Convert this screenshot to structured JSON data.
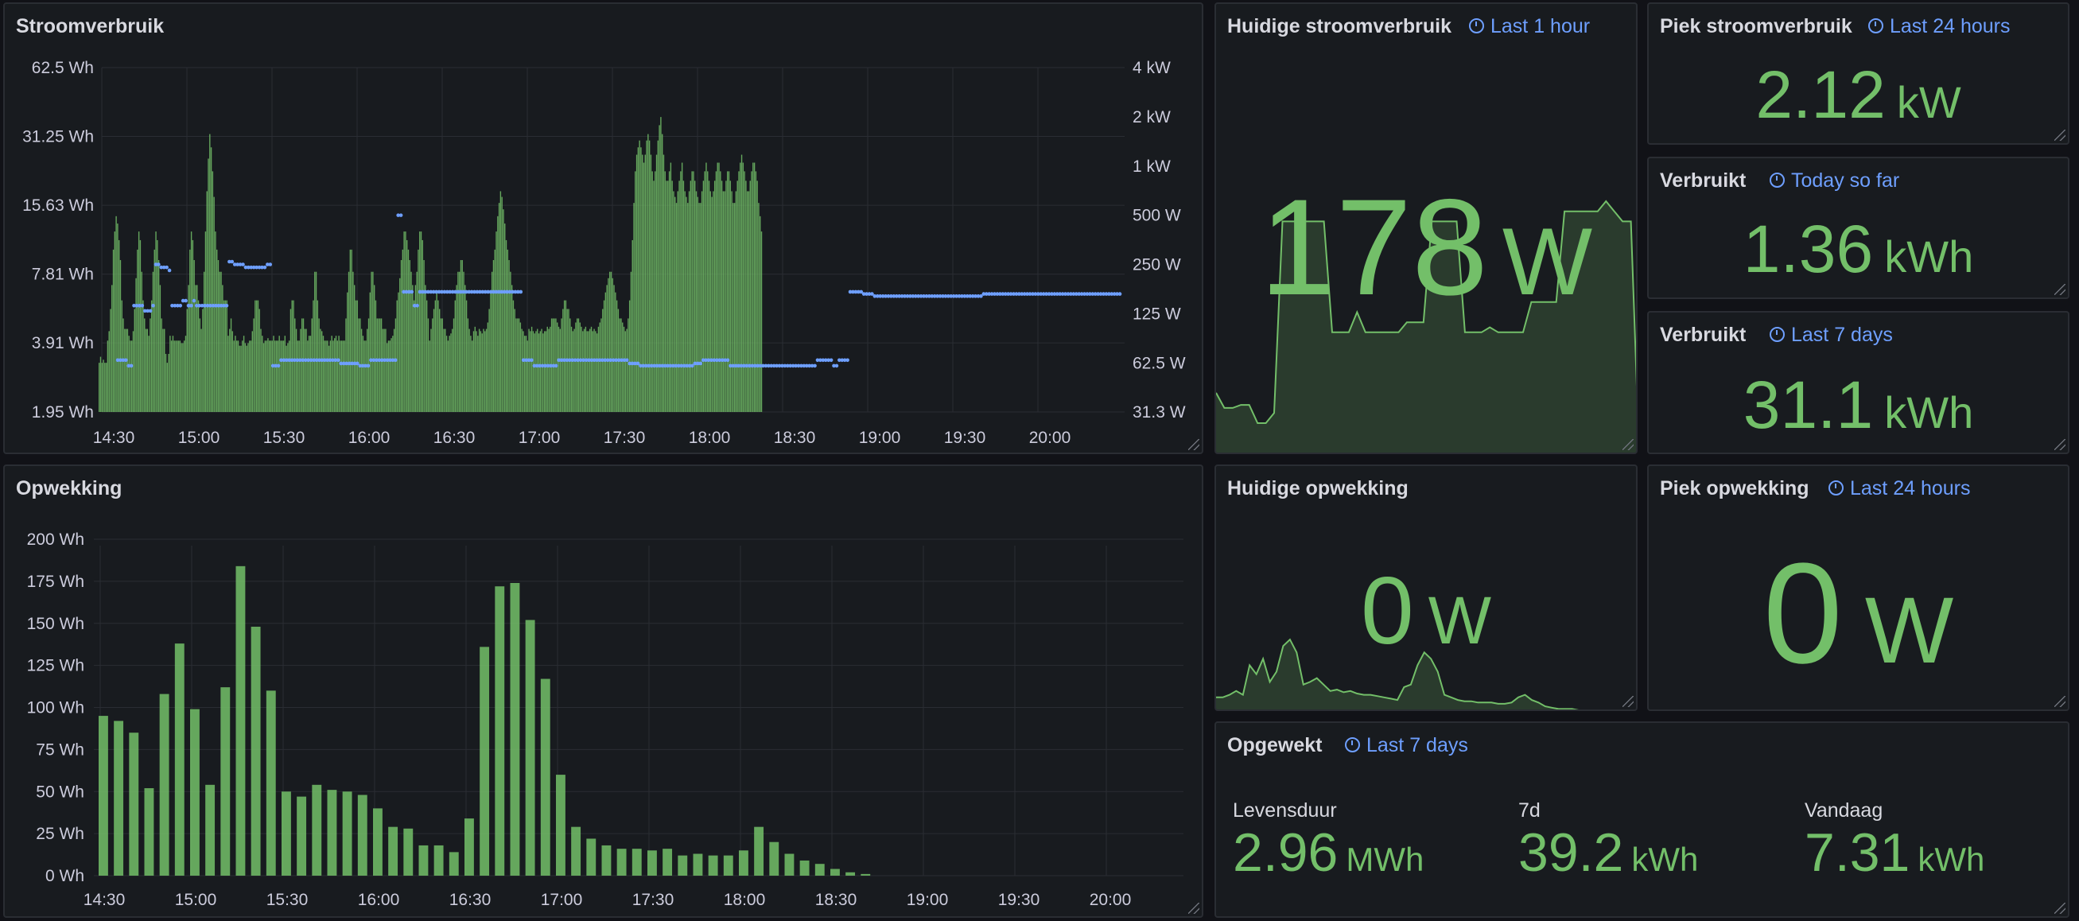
{
  "panels": {
    "stroomverbruik": {
      "title": "Stroomverbruik"
    },
    "opwekking": {
      "title": "Opwekking"
    },
    "huidige_stroomverbruik": {
      "title": "Huidige stroomverbruik",
      "time_range": "Last 1 hour",
      "value": "178",
      "unit": "W"
    },
    "piek_stroomverbruik": {
      "title": "Piek stroomverbruik",
      "time_range": "Last 24 hours",
      "value": "2.12",
      "unit": "kW"
    },
    "verbruikt_today": {
      "title": "Verbruikt",
      "time_range": "Today so far",
      "value": "1.36",
      "unit": "kWh"
    },
    "verbruikt_7d": {
      "title": "Verbruikt",
      "time_range": "Last 7 days",
      "value": "31.1",
      "unit": "kWh"
    },
    "huidige_opwekking": {
      "title": "Huidige opwekking",
      "value": "0",
      "unit": "W"
    },
    "piek_opwekking": {
      "title": "Piek opwekking",
      "time_range": "Last 24 hours",
      "value": "0",
      "unit": "W"
    },
    "opgewekt": {
      "title": "Opgewekt",
      "time_range": "Last 7 days",
      "items": [
        {
          "label": "Levensduur",
          "value": "2.96",
          "unit": "MWh"
        },
        {
          "label": "7d",
          "value": "39.2",
          "unit": "kWh"
        },
        {
          "label": "Vandaag",
          "value": "7.31",
          "unit": "kWh"
        }
      ]
    }
  },
  "colors": {
    "green": "#73bf69",
    "blue": "#6e9fff",
    "panel_bg": "#181b1f",
    "page_bg": "#111217"
  },
  "chart_data": [
    {
      "type": "bar",
      "title": "Stroomverbruik",
      "x_ticks": [
        "14:30",
        "15:00",
        "15:30",
        "16:00",
        "16:30",
        "17:00",
        "17:30",
        "18:00",
        "18:30",
        "19:00",
        "19:30",
        "20:00"
      ],
      "y_left_ticks": [
        "62.5 Wh",
        "31.25 Wh",
        "15.63 Wh",
        "7.81 Wh",
        "3.91 Wh",
        "1.95 Wh"
      ],
      "y_right_ticks": [
        "4 kW",
        "2 kW",
        "1 kW",
        "500 W",
        "250 W",
        "125 W",
        "62.5 W",
        "31.3 W"
      ],
      "scale": "log2",
      "series": [
        {
          "axis": "left",
          "style": "bars",
          "color": "#73bf69",
          "x_start": "14:30",
          "x_step_min": 0.5,
          "values": [
            3.2,
            3.4,
            3.2,
            3.3,
            3.2,
            3.2,
            4,
            4.4,
            5.5,
            7,
            10,
            12,
            14,
            13,
            11,
            9,
            6,
            5,
            4.5,
            4.5,
            4.5,
            4.2,
            4,
            4,
            4.4,
            5.5,
            7.5,
            10,
            12,
            11,
            8,
            6,
            5,
            4.5,
            4.5,
            4.2,
            5,
            6,
            8,
            10,
            12,
            11,
            9,
            7,
            5,
            4.5,
            4.5,
            3.5,
            3.2,
            3.5,
            4.2,
            4,
            4.2,
            4,
            4,
            4,
            4,
            4,
            3.9,
            3.9,
            4,
            4.2,
            5.5,
            7,
            10,
            12,
            11,
            9,
            7,
            7,
            6,
            5,
            4.5,
            5.5,
            8,
            12,
            18,
            25,
            32,
            28,
            22,
            17,
            12,
            10,
            9,
            8,
            8,
            7,
            6,
            6,
            6,
            4.2,
            4.5,
            5,
            4.4,
            4,
            4.2,
            4,
            4,
            3.8,
            3.8,
            4,
            4.2,
            3.9,
            3.8,
            3.9,
            4,
            4,
            4.4,
            5,
            6,
            6,
            6,
            5.5,
            4.5,
            4.2,
            3.9,
            4,
            4,
            4.1,
            4,
            4,
            4,
            4.2,
            4,
            4,
            4,
            4.2,
            4,
            4,
            4,
            4.2,
            3.8,
            3.9,
            4,
            5.5,
            6,
            6,
            5,
            4.5,
            4,
            4,
            4.5,
            5,
            5,
            4.5,
            4.5,
            4,
            4.2,
            4.2,
            5,
            6,
            8,
            8,
            6,
            5,
            4.5,
            4.4,
            4.2,
            4,
            4,
            4,
            3.8,
            4,
            4.2,
            4,
            4.1,
            4.2,
            4,
            4.2,
            4,
            4,
            4,
            4,
            5,
            6.5,
            8,
            10,
            10,
            8,
            7,
            6,
            6,
            5,
            5,
            4.5,
            4.2,
            4,
            4,
            4.5,
            5,
            6.5,
            8,
            8,
            7,
            6,
            5,
            5,
            5,
            5,
            4.5,
            4.5,
            4.5,
            3.9,
            4,
            4,
            4.1,
            4.2,
            4.5,
            5,
            6,
            6.5,
            7.5,
            9,
            10,
            12,
            12,
            11,
            10,
            9,
            8,
            7,
            6,
            7,
            8,
            10,
            12,
            12,
            11,
            9,
            7,
            6,
            5,
            4,
            4.5,
            5,
            5.5,
            6,
            6.5,
            6,
            5.5,
            5,
            5,
            4.5,
            4.5,
            4.2,
            4,
            4.2,
            4.3,
            4.5,
            5,
            6,
            7,
            8,
            8,
            9,
            9,
            8,
            7,
            6,
            5,
            4.5,
            4.2,
            4,
            4.4,
            4.6,
            4.4,
            4.2,
            4.5,
            4.4,
            4.3,
            4.5,
            4.4,
            4.5,
            4.8,
            5.5,
            6.5,
            8,
            9,
            10,
            12,
            14,
            16,
            18,
            17,
            15,
            13,
            11,
            10,
            9,
            8,
            7,
            6,
            5.5,
            5,
            5,
            5,
            4.8,
            4.5,
            4.4,
            4.2,
            4.2,
            4,
            4.5,
            4.4,
            4.6,
            4.4,
            4.3,
            4.4,
            4.5,
            4.3,
            4.4,
            4.5,
            4.3,
            4.4,
            4.4,
            4.6,
            4.5,
            4.6,
            5,
            5,
            5,
            5,
            4.8,
            4.6,
            4.5,
            5,
            5.5,
            6,
            6,
            5.5,
            5.5,
            5,
            4.6,
            4.4,
            4.5,
            4.8,
            5,
            5,
            4.8,
            4.6,
            4.4,
            4.5,
            4.6,
            4.4,
            4.4,
            4.5,
            4.6,
            4.4,
            4.5,
            4.4,
            4.3,
            4.6,
            4.8,
            5,
            5.5,
            6,
            6.5,
            7,
            7.5,
            8,
            8,
            7.5,
            7,
            6.5,
            6,
            5.5,
            5,
            5,
            4.8,
            4.6,
            4.4,
            4.5,
            5,
            6,
            8,
            11,
            16,
            22,
            26,
            28,
            30,
            28,
            26,
            24,
            26,
            30,
            32,
            30,
            26,
            22,
            20,
            22,
            26,
            30,
            35,
            38,
            32,
            26,
            22,
            20,
            20,
            22,
            24,
            20,
            18,
            17,
            16,
            18,
            20,
            22,
            24,
            20,
            18,
            17,
            16,
            18,
            20,
            22,
            22,
            20,
            18,
            17,
            16,
            16,
            18,
            20,
            22,
            24,
            22,
            20,
            18,
            17,
            18,
            20,
            22,
            24,
            24,
            22,
            20,
            18,
            18,
            20,
            22,
            22,
            20,
            18,
            16,
            16,
            18,
            20,
            22,
            24,
            26,
            24,
            22,
            20,
            18,
            18,
            20,
            22,
            24,
            24,
            22,
            20,
            16,
            14,
            12
          ]
        },
        {
          "axis": "right",
          "style": "points",
          "color": "#6e9fff",
          "x_start": "14:30",
          "x_step_min": 2,
          "values": [
            65,
            65,
            65,
            65,
            60,
            60,
            140,
            140,
            140,
            140,
            130,
            130,
            130,
            140,
            250,
            250,
            240,
            240,
            240,
            230,
            140,
            140,
            140,
            140,
            150,
            150,
            140,
            140,
            150,
            140,
            140,
            140,
            140,
            140,
            140,
            140,
            140,
            140,
            140,
            140,
            140,
            260,
            260,
            250,
            250,
            250,
            250,
            240,
            240,
            240,
            240,
            240,
            240,
            240,
            240,
            250,
            250,
            60,
            60,
            60,
            65,
            65,
            65,
            65,
            65,
            65,
            65,
            65,
            65,
            65,
            65,
            65,
            65,
            65,
            65,
            65,
            65,
            65,
            65,
            65,
            65,
            65,
            62,
            62,
            62,
            62,
            62,
            62,
            62,
            60,
            60,
            60,
            60,
            65,
            65,
            65,
            65,
            65,
            65,
            65,
            65,
            65,
            65,
            500,
            500,
            170,
            170,
            170,
            170,
            140,
            140,
            170,
            170,
            170,
            170,
            170,
            170,
            170,
            170,
            170,
            170,
            170,
            170,
            170,
            170,
            170,
            170,
            170,
            170,
            170,
            170,
            170,
            170,
            170,
            170,
            170,
            170,
            170,
            170,
            170,
            170,
            170,
            170,
            170,
            170,
            170,
            170,
            170,
            170,
            65,
            65,
            65,
            65,
            60,
            60,
            60,
            60,
            60,
            60,
            60,
            60,
            60,
            65,
            65,
            65,
            65,
            65,
            65,
            65,
            65,
            65,
            65,
            65,
            65,
            65,
            65,
            65,
            65,
            65,
            65,
            65,
            65,
            65,
            65,
            65,
            65,
            65,
            65,
            62,
            62,
            62,
            62,
            60,
            60,
            60,
            60,
            60,
            60,
            60,
            60,
            60,
            60,
            60,
            60,
            60,
            60,
            60,
            60,
            60,
            60,
            60,
            60,
            62,
            62,
            62,
            65,
            65,
            65,
            65,
            65,
            65,
            65,
            65,
            65,
            65,
            60,
            60,
            60,
            60,
            60,
            60,
            60,
            60,
            60,
            60,
            60,
            60,
            60,
            60,
            60,
            60,
            60,
            60,
            60,
            60,
            60,
            60,
            60,
            60,
            60,
            60,
            60,
            60,
            60,
            60,
            60,
            60,
            65,
            65,
            65,
            65,
            65,
            65,
            60,
            60,
            65,
            65,
            65,
            65,
            170,
            170,
            170,
            170,
            170,
            165,
            165,
            165,
            165,
            160,
            160,
            160,
            160,
            160,
            160,
            160,
            160,
            160,
            160,
            160,
            160,
            160,
            160,
            160,
            160,
            160,
            160,
            160,
            160,
            160,
            160,
            160,
            160,
            160,
            160,
            160,
            160,
            160,
            160,
            160,
            160,
            160,
            160,
            160,
            160,
            160,
            160,
            160,
            160,
            165,
            165,
            165,
            165,
            165,
            165,
            165,
            165,
            165,
            165,
            165,
            165,
            165,
            165,
            165,
            165,
            165,
            165,
            165,
            165,
            165,
            165,
            165,
            165,
            165,
            165,
            165,
            165,
            165,
            165,
            165,
            165,
            165,
            165,
            165,
            165,
            165,
            165,
            165,
            165,
            165,
            165,
            165,
            165,
            165,
            165,
            165,
            165,
            165,
            165,
            165,
            165,
            165,
            165,
            165,
            165,
            165,
            165,
            165,
            165,
            165,
            165,
            165,
            165,
            165,
            165,
            165,
            165,
            165,
            165,
            165,
            165,
            165,
            165,
            165,
            165,
            165,
            165,
            165,
            165,
            165,
            165,
            165,
            165,
            165
          ]
        }
      ]
    },
    {
      "type": "bar",
      "title": "Opwekking",
      "x_ticks": [
        "14:30",
        "15:00",
        "15:30",
        "16:00",
        "16:30",
        "17:00",
        "17:30",
        "18:00",
        "18:30",
        "19:00",
        "19:30",
        "20:00"
      ],
      "y_ticks": [
        "200 Wh",
        "175 Wh",
        "150 Wh",
        "125 Wh",
        "100 Wh",
        "75 Wh",
        "50 Wh",
        "25 Wh",
        "0 Wh"
      ],
      "ylim": [
        0,
        200
      ],
      "x_start": "14:30",
      "x_step_min": 5,
      "values": [
        95,
        92,
        85,
        52,
        108,
        138,
        99,
        54,
        112,
        184,
        148,
        110,
        50,
        47,
        54,
        51,
        50,
        48,
        40,
        29,
        28,
        18,
        18,
        14,
        34,
        136,
        172,
        174,
        152,
        117,
        60,
        29,
        22,
        18,
        16,
        16,
        15,
        16,
        12,
        13,
        12,
        12,
        15,
        29,
        20,
        13,
        9,
        7,
        4,
        2,
        1,
        0,
        0,
        0,
        0,
        0,
        0,
        0,
        0,
        0,
        0,
        0,
        0,
        0,
        0,
        0,
        0,
        0,
        0,
        0,
        0,
        0,
        0
      ]
    },
    {
      "type": "area",
      "title": "Huidige stroomverbruik sparkline",
      "values": [
        60,
        45,
        45,
        48,
        48,
        30,
        30,
        40,
        230,
        230,
        230,
        230,
        230,
        230,
        120,
        120,
        120,
        140,
        120,
        120,
        120,
        120,
        120,
        130,
        130,
        130,
        230,
        230,
        230,
        230,
        120,
        120,
        120,
        125,
        120,
        120,
        120,
        120,
        150,
        150,
        150,
        150,
        240,
        240,
        240,
        240,
        240,
        250,
        240,
        230,
        230,
        0
      ]
    },
    {
      "type": "area",
      "title": "Huidige opwekking sparkline",
      "values": [
        10,
        10,
        12,
        15,
        12,
        35,
        28,
        40,
        22,
        30,
        50,
        55,
        45,
        20,
        22,
        25,
        20,
        15,
        16,
        14,
        15,
        13,
        12,
        12,
        11,
        10,
        9,
        8,
        18,
        20,
        35,
        45,
        40,
        30,
        12,
        10,
        8,
        7,
        7,
        6,
        6,
        6,
        5,
        5,
        6,
        10,
        12,
        8,
        6,
        3,
        2,
        1,
        1,
        1,
        0,
        0,
        0,
        0,
        0,
        0,
        0,
        0,
        0,
        0
      ]
    }
  ]
}
